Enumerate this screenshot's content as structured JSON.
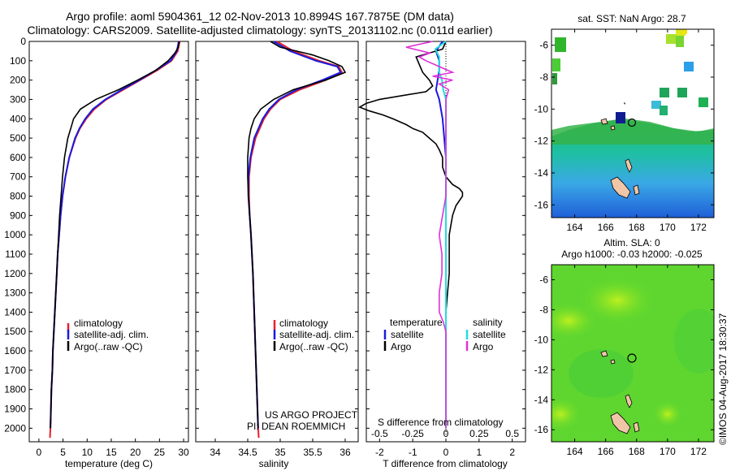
{
  "header": {
    "line1": "Argo profile: aoml 5904361_12 02-Nov-2013 10.8994S 167.7875E (DM data)",
    "line2": "Climatology: CARS2009. Satellite-adjusted climatology: synTS_20131102.nc (0.011d earlier)"
  },
  "colors": {
    "climatology": "#e8202a",
    "satellite": "#1a1adf",
    "argo": "#000000",
    "s_satellite": "#22dddd",
    "s_argo": "#e030d8"
  },
  "chart_data": [
    {
      "type": "line",
      "panel": "temperature",
      "xlabel": "temperature (deg C)",
      "xlim": [
        -2,
        31
      ],
      "xticks": [
        0,
        5,
        10,
        15,
        20,
        25,
        30
      ],
      "ylim": [
        0,
        2070
      ],
      "yticks": [
        0,
        100,
        200,
        300,
        400,
        500,
        600,
        700,
        800,
        900,
        1000,
        1100,
        1200,
        1300,
        1400,
        1500,
        1600,
        1700,
        1800,
        1900,
        2000
      ],
      "legend": [
        "climatology",
        "satellite-adj. clim.",
        "Argo(..raw -QC)"
      ],
      "series": [
        {
          "name": "climatology",
          "depth": [
            0,
            50,
            100,
            150,
            200,
            250,
            300,
            350,
            400,
            450,
            500,
            600,
            700,
            800,
            900,
            1000,
            1100,
            1200,
            1300,
            1400,
            1500,
            1600,
            1700,
            1800,
            1900,
            2000,
            2050
          ],
          "values": [
            29.2,
            28.8,
            27.5,
            24.5,
            21.0,
            17.5,
            14.0,
            11.5,
            9.8,
            8.5,
            7.6,
            6.3,
            5.5,
            4.9,
            4.5,
            4.2,
            3.9,
            3.7,
            3.5,
            3.3,
            3.1,
            2.9,
            2.8,
            2.6,
            2.5,
            2.4,
            2.3
          ]
        },
        {
          "name": "satellite",
          "depth": [
            0,
            50,
            100,
            150,
            200,
            250,
            300,
            350,
            400,
            450,
            500,
            600,
            700,
            800,
            900,
            1000,
            1100,
            1200,
            1300,
            1400,
            1500,
            1600,
            1700,
            1800,
            1900,
            2000
          ],
          "values": [
            29.0,
            28.6,
            27.3,
            24.2,
            20.8,
            17.2,
            13.8,
            11.2,
            9.6,
            8.4,
            7.5,
            6.3,
            5.5,
            4.9,
            4.5,
            4.2,
            3.9,
            3.7,
            3.5,
            3.3,
            3.1,
            2.9,
            2.8,
            2.6,
            2.5,
            2.4
          ]
        },
        {
          "name": "argo",
          "depth": [
            0,
            30,
            60,
            100,
            150,
            200,
            250,
            300,
            350,
            400,
            450,
            500,
            600,
            700,
            800,
            900,
            1000,
            1100,
            1200,
            1300,
            1400,
            1500,
            1600,
            1700,
            1800,
            1900,
            2000
          ],
          "values": [
            29.1,
            28.9,
            28.2,
            26.8,
            24.2,
            20.5,
            16.5,
            11.8,
            8.6,
            7.2,
            6.6,
            6.0,
            5.3,
            4.9,
            4.6,
            4.3,
            4.1,
            3.9,
            3.7,
            3.5,
            3.3,
            3.1,
            2.9,
            2.8,
            2.6,
            2.5,
            2.4
          ]
        }
      ]
    },
    {
      "type": "line",
      "panel": "salinity",
      "xlabel": "salinity",
      "xlim": [
        33.7,
        36.2
      ],
      "xticks": [
        34,
        34.5,
        35,
        35.5,
        36
      ],
      "ylim": [
        0,
        2070
      ],
      "legend": [
        "climatology",
        "satellite-adj. clim.",
        "Argo(..raw -QC)"
      ],
      "annotation": [
        "US ARGO PROJECT",
        "PI: DEAN ROEMMICH"
      ],
      "series": [
        {
          "name": "climatology",
          "depth": [
            0,
            50,
            100,
            130,
            160,
            200,
            250,
            300,
            350,
            400,
            500,
            600,
            700,
            800,
            900,
            1000,
            1200,
            1400,
            1600,
            1800,
            2000,
            2050
          ],
          "values": [
            34.95,
            35.2,
            35.6,
            35.9,
            35.95,
            35.7,
            35.3,
            35.0,
            34.85,
            34.75,
            34.62,
            34.55,
            34.52,
            34.52,
            34.53,
            34.55,
            34.58,
            34.6,
            34.62,
            34.64,
            34.66,
            34.67
          ]
        },
        {
          "name": "satellite",
          "depth": [
            0,
            50,
            100,
            130,
            160,
            200,
            250,
            300,
            350,
            400,
            500,
            600,
            700,
            800,
            900,
            1000,
            1200,
            1400,
            1600,
            1800,
            2000
          ],
          "values": [
            34.9,
            35.15,
            35.55,
            35.88,
            35.93,
            35.65,
            35.25,
            34.98,
            34.83,
            34.73,
            34.6,
            34.54,
            34.51,
            34.51,
            34.53,
            34.55,
            34.58,
            34.6,
            34.62,
            34.64,
            34.66
          ]
        },
        {
          "name": "argo",
          "depth": [
            0,
            30,
            70,
            100,
            130,
            160,
            200,
            250,
            300,
            350,
            400,
            450,
            500,
            600,
            700,
            800,
            900,
            1000,
            1200,
            1400,
            1600,
            1800,
            2000
          ],
          "values": [
            34.85,
            35.0,
            35.5,
            35.75,
            35.95,
            36.0,
            35.7,
            35.2,
            34.9,
            34.7,
            34.6,
            34.55,
            34.52,
            34.5,
            34.5,
            34.51,
            34.53,
            34.55,
            34.58,
            34.6,
            34.62,
            34.64,
            34.66
          ]
        }
      ]
    },
    {
      "type": "line",
      "panel": "difference",
      "xlabel": "T difference from climatology",
      "xticks": [
        -2,
        -1,
        0,
        1,
        2
      ],
      "xticklabels": [
        "-2",
        "-1",
        "0",
        "1",
        "2"
      ],
      "xlim": [
        -2.4,
        2.4
      ],
      "top_xlabel": "S difference from climatology",
      "top_xticks": [
        -0.5,
        -0.25,
        0,
        0.25,
        0.5
      ],
      "top_xticklabels": [
        "-0.5",
        "-0.25",
        "0",
        "0.25",
        "0.5"
      ],
      "top_xlim": [
        -0.6,
        0.6
      ],
      "ylim": [
        0,
        2070
      ],
      "legend_t": [
        "temperature",
        "satellite",
        "Argo"
      ],
      "legend_s": [
        "salinity",
        "satellite",
        "Argo"
      ],
      "series": [
        {
          "name": "T satellite",
          "depth": [
            0,
            50,
            100,
            150,
            200,
            250,
            300,
            400,
            600,
            1000,
            1500,
            2000
          ],
          "values": [
            -0.1,
            -0.3,
            -0.2,
            -0.2,
            -0.25,
            -0.3,
            -0.2,
            -0.1,
            0,
            0,
            0,
            0
          ]
        },
        {
          "name": "T argo",
          "depth": [
            0,
            40,
            80,
            120,
            160,
            200,
            230,
            260,
            300,
            320,
            340,
            360,
            380,
            400,
            430,
            450,
            470,
            500,
            530,
            560,
            600,
            650,
            700,
            740,
            760,
            780,
            800,
            850,
            900,
            1000,
            1100,
            1200,
            1300,
            1400,
            1500,
            1600,
            1700,
            1800,
            1900,
            2000
          ],
          "values": [
            0,
            -0.1,
            -0.9,
            -0.8,
            -0.7,
            -0.5,
            -0.4,
            -0.6,
            -2.0,
            -2.4,
            -2.6,
            -2.3,
            -1.9,
            -1.6,
            -1.2,
            -1.0,
            -0.7,
            -0.5,
            -0.3,
            -0.2,
            -0.1,
            -0.1,
            0,
            0.2,
            0.4,
            0.5,
            0.5,
            0.3,
            0.2,
            0.1,
            0.1,
            0.1,
            0.05,
            0,
            0,
            0,
            0,
            0,
            0,
            0
          ]
        },
        {
          "name": "S satellite",
          "depth": [
            0,
            40,
            80,
            120,
            160,
            200,
            250,
            300,
            400,
            600,
            800,
            1000,
            1500,
            2000
          ],
          "values": [
            0,
            -0.08,
            -0.05,
            -0.05,
            -0.05,
            -0.03,
            -0.02,
            0,
            0,
            0,
            0,
            0,
            0,
            0
          ]
        },
        {
          "name": "S argo",
          "depth": [
            0,
            30,
            60,
            80,
            100,
            130,
            160,
            180,
            200,
            220,
            250,
            300,
            400,
            600,
            800,
            1000,
            1100,
            1200,
            1300,
            1400,
            1450,
            1500,
            1600,
            1800,
            2000
          ],
          "values": [
            -0.1,
            -0.3,
            -0.12,
            -0.2,
            -0.15,
            -0.05,
            0.05,
            -0.1,
            0.05,
            -0.05,
            0.02,
            0,
            0,
            0,
            0,
            -0.05,
            -0.03,
            -0.03,
            -0.05,
            -0.05,
            -0.02,
            0,
            0,
            0,
            0
          ]
        }
      ]
    },
    {
      "type": "heatmap",
      "panel": "sst_map",
      "title": "sat. SST: NaN Argo: 28.7",
      "xlim": [
        162.5,
        173
      ],
      "xticks": [
        164,
        166,
        168,
        170,
        172
      ],
      "ylim": [
        -16.8,
        -5
      ],
      "yticks": [
        -6,
        -8,
        -10,
        -12,
        -14,
        -16
      ],
      "argo_position": [
        167.8,
        -10.9
      ]
    },
    {
      "type": "heatmap",
      "panel": "sla_map",
      "title": [
        "Altim. SLA: 0",
        "Argo h1000: -0.03 h2000: -0.025"
      ],
      "xlim": [
        162.5,
        173
      ],
      "xticks": [
        164,
        166,
        168,
        170,
        172
      ],
      "ylim": [
        -16.8,
        -5
      ],
      "yticks": [
        -6,
        -8,
        -10,
        -12,
        -14,
        -16
      ],
      "argo_position": [
        167.8,
        -10.9
      ]
    }
  ],
  "footer": {
    "timestamp": "©IMOS 04-Aug-2017 18:30:37"
  }
}
